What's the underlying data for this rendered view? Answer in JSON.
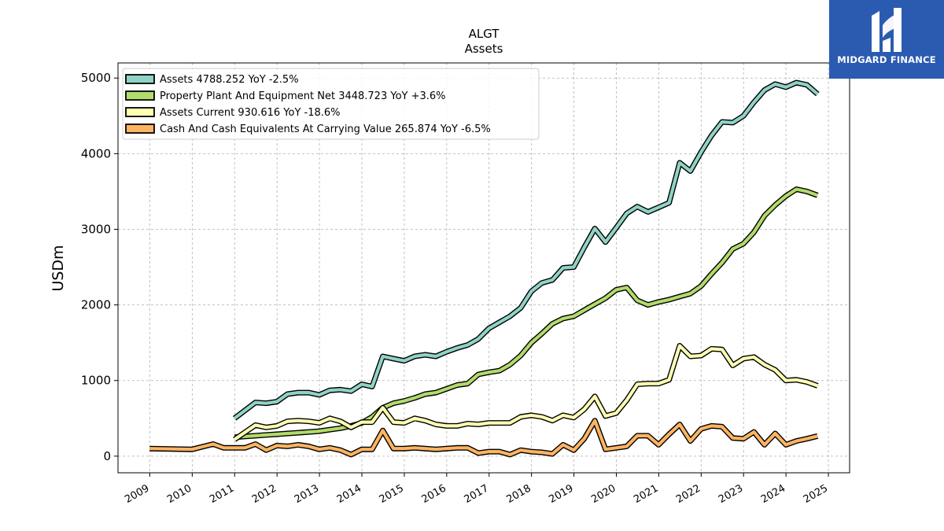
{
  "brand": {
    "name": "MIDGARD FINANCE"
  },
  "chart_data": {
    "type": "line",
    "title": "ALGT",
    "subtitle": "Assets",
    "ylabel": "USDm",
    "xlabel": "",
    "xlim": [
      2008.25,
      2025.5
    ],
    "ylim": [
      -220,
      5200
    ],
    "xticks": [
      "2009",
      "2010",
      "2011",
      "2012",
      "2013",
      "2014",
      "2015",
      "2016",
      "2017",
      "2018",
      "2019",
      "2020",
      "2021",
      "2022",
      "2023",
      "2024",
      "2025"
    ],
    "yticks": [
      "0",
      "1000",
      "2000",
      "3000",
      "4000",
      "5000"
    ],
    "grid": true,
    "legend_position": "top-left",
    "series": [
      {
        "name": "Assets",
        "legend": "Assets  4788.252 YoY -2.5%",
        "color": "#8fd3c6",
        "x": [
          "2010-12-31",
          "2011-06-30",
          "2011-09-30",
          "2011-12-31",
          "2012-03-31",
          "2012-06-30",
          "2012-09-30",
          "2012-12-31",
          "2013-03-31",
          "2013-06-30",
          "2013-09-30",
          "2013-12-31",
          "2014-03-31",
          "2014-06-30",
          "2014-09-30",
          "2014-12-31",
          "2015-03-31",
          "2015-06-30",
          "2015-09-30",
          "2015-12-31",
          "2016-03-31",
          "2016-06-30",
          "2016-09-30",
          "2016-12-31",
          "2017-03-31",
          "2017-06-30",
          "2017-09-30",
          "2017-12-31",
          "2018-03-31",
          "2018-06-30",
          "2018-09-30",
          "2018-12-31",
          "2019-03-31",
          "2019-06-30",
          "2019-09-30",
          "2019-12-31",
          "2020-03-31",
          "2020-06-30",
          "2020-09-30",
          "2020-12-31",
          "2021-03-31",
          "2021-06-30",
          "2021-09-30",
          "2021-12-31",
          "2022-03-31",
          "2022-06-30",
          "2022-09-30",
          "2022-12-31",
          "2023-03-31",
          "2023-06-30",
          "2023-09-30",
          "2023-12-31",
          "2024-03-31",
          "2024-06-30",
          "2024-09-30"
        ],
        "values": [
          500,
          710,
          700,
          720,
          820,
          840,
          840,
          810,
          870,
          880,
          860,
          950,
          920,
          1320,
          1290,
          1260,
          1320,
          1340,
          1320,
          1380,
          1430,
          1470,
          1550,
          1690,
          1770,
          1850,
          1960,
          2180,
          2290,
          2330,
          2490,
          2500,
          2760,
          3010,
          2830,
          3020,
          3210,
          3300,
          3230,
          3290,
          3350,
          3880,
          3770,
          4020,
          4240,
          4420,
          4410,
          4500,
          4680,
          4840,
          4920,
          4880,
          4940,
          4910,
          4788
        ]
      },
      {
        "name": "Property Plant And Equipment Net",
        "legend": "Property Plant And Equipment Net  3448.723 YoY +3.6%",
        "color": "#b1db6b",
        "x": [
          "2010-12-31",
          "2011-06-30",
          "2011-09-30",
          "2011-12-31",
          "2012-03-31",
          "2012-06-30",
          "2012-09-30",
          "2012-12-31",
          "2013-03-31",
          "2013-06-30",
          "2013-09-30",
          "2013-12-31",
          "2014-03-31",
          "2014-06-30",
          "2014-09-30",
          "2014-12-31",
          "2015-03-31",
          "2015-06-30",
          "2015-09-30",
          "2015-12-31",
          "2016-03-31",
          "2016-06-30",
          "2016-09-30",
          "2016-12-31",
          "2017-03-31",
          "2017-06-30",
          "2017-09-30",
          "2017-12-31",
          "2018-03-31",
          "2018-06-30",
          "2018-09-30",
          "2018-12-31",
          "2019-03-31",
          "2019-06-30",
          "2019-09-30",
          "2019-12-31",
          "2020-03-31",
          "2020-06-30",
          "2020-09-30",
          "2020-12-31",
          "2021-03-31",
          "2021-06-30",
          "2021-09-30",
          "2021-12-31",
          "2022-03-31",
          "2022-06-30",
          "2022-09-30",
          "2022-12-31",
          "2023-03-31",
          "2023-06-30",
          "2023-09-30",
          "2023-12-31",
          "2024-03-31",
          "2024-06-30",
          "2024-09-30"
        ],
        "values": [
          250,
          270,
          280,
          290,
          300,
          310,
          320,
          330,
          350,
          370,
          400,
          440,
          520,
          640,
          700,
          730,
          770,
          820,
          840,
          890,
          940,
          960,
          1080,
          1110,
          1130,
          1210,
          1330,
          1500,
          1620,
          1750,
          1820,
          1850,
          1930,
          2010,
          2090,
          2200,
          2230,
          2060,
          2000,
          2040,
          2070,
          2110,
          2150,
          2250,
          2410,
          2560,
          2740,
          2810,
          2960,
          3180,
          3320,
          3440,
          3530,
          3500,
          3449
        ]
      },
      {
        "name": "Assets Current",
        "legend": "Assets Current  930.616 YoY -18.6%",
        "color": "#ffffb3",
        "x": [
          "2010-12-31",
          "2011-06-30",
          "2011-09-30",
          "2011-12-31",
          "2012-03-31",
          "2012-06-30",
          "2012-09-30",
          "2012-12-31",
          "2013-03-31",
          "2013-06-30",
          "2013-09-30",
          "2013-12-31",
          "2014-03-31",
          "2014-06-30",
          "2014-09-30",
          "2014-12-31",
          "2015-03-31",
          "2015-06-30",
          "2015-09-30",
          "2015-12-31",
          "2016-03-31",
          "2016-06-30",
          "2016-09-30",
          "2016-12-31",
          "2017-03-31",
          "2017-06-30",
          "2017-09-30",
          "2017-12-31",
          "2018-03-31",
          "2018-06-30",
          "2018-09-30",
          "2018-12-31",
          "2019-03-31",
          "2019-06-30",
          "2019-09-30",
          "2019-12-31",
          "2020-03-31",
          "2020-06-30",
          "2020-09-30",
          "2020-12-31",
          "2021-03-31",
          "2021-06-30",
          "2021-09-30",
          "2021-12-31",
          "2022-03-31",
          "2022-06-30",
          "2022-09-30",
          "2022-12-31",
          "2023-03-31",
          "2023-06-30",
          "2023-09-30",
          "2023-12-31",
          "2024-03-31",
          "2024-06-30",
          "2024-09-30"
        ],
        "values": [
          220,
          410,
          380,
          400,
          460,
          470,
          460,
          440,
          500,
          460,
          380,
          450,
          450,
          640,
          450,
          440,
          500,
          470,
          420,
          400,
          400,
          430,
          420,
          440,
          440,
          440,
          520,
          540,
          520,
          470,
          540,
          510,
          620,
          790,
          530,
          570,
          740,
          950,
          960,
          960,
          1010,
          1460,
          1320,
          1330,
          1420,
          1410,
          1200,
          1290,
          1310,
          1210,
          1140,
          1000,
          1010,
          980,
          931
        ]
      },
      {
        "name": "Cash And Cash Equivalents At Carrying Value",
        "legend": "Cash And Cash Equivalents At Carrying Value  265.874 YoY -6.5%",
        "color": "#fdb462",
        "x": [
          "2008-12-31",
          "2009-12-31",
          "2010-06-30",
          "2010-09-30",
          "2010-12-31",
          "2011-03-31",
          "2011-06-30",
          "2011-09-30",
          "2011-12-31",
          "2012-03-31",
          "2012-06-30",
          "2012-09-30",
          "2012-12-31",
          "2013-03-31",
          "2013-06-30",
          "2013-09-30",
          "2013-12-31",
          "2014-03-31",
          "2014-06-30",
          "2014-09-30",
          "2014-12-31",
          "2015-03-31",
          "2015-06-30",
          "2015-09-30",
          "2015-12-31",
          "2016-03-31",
          "2016-06-30",
          "2016-09-30",
          "2016-12-31",
          "2017-03-31",
          "2017-06-30",
          "2017-09-30",
          "2017-12-31",
          "2018-03-31",
          "2018-06-30",
          "2018-09-30",
          "2018-12-31",
          "2019-03-31",
          "2019-06-30",
          "2019-09-30",
          "2019-12-31",
          "2020-03-31",
          "2020-06-30",
          "2020-09-30",
          "2020-12-31",
          "2021-03-31",
          "2021-06-30",
          "2021-09-30",
          "2021-12-31",
          "2022-03-31",
          "2022-06-30",
          "2022-09-30",
          "2022-12-31",
          "2023-03-31",
          "2023-06-30",
          "2023-09-30",
          "2023-12-31",
          "2024-03-31",
          "2024-06-30",
          "2024-09-30"
        ],
        "values": [
          100,
          90,
          160,
          110,
          110,
          110,
          160,
          80,
          140,
          130,
          150,
          130,
          90,
          110,
          80,
          20,
          90,
          90,
          340,
          100,
          100,
          110,
          100,
          90,
          100,
          110,
          110,
          40,
          60,
          60,
          20,
          80,
          60,
          50,
          30,
          150,
          80,
          230,
          470,
          90,
          110,
          130,
          270,
          270,
          150,
          290,
          420,
          200,
          360,
          400,
          390,
          240,
          230,
          320,
          150,
          300,
          150,
          200,
          230,
          266
        ]
      }
    ]
  }
}
